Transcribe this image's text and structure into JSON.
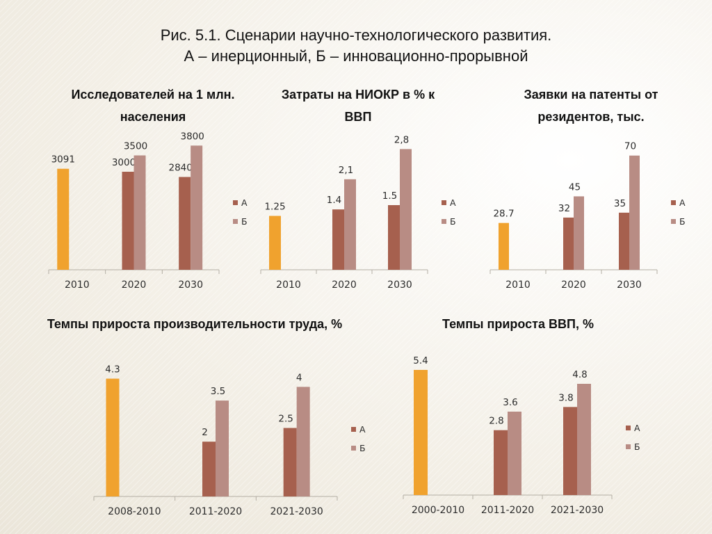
{
  "figure": {
    "title_line1": "Рис. 5.1. Сценарии научно-технологического развития.",
    "title_line2": "А – инерционный, Б – инновационно-прорывной"
  },
  "colors": {
    "base": "#f0a22e",
    "A": "#a6604e",
    "B": "#b88c84",
    "axis": "#b3aea4"
  },
  "chart_data": [
    {
      "type": "bar",
      "title_lines": [
        "Исследователей на 1 млн.",
        "населения"
      ],
      "categories": [
        "2010",
        "2020",
        "2030"
      ],
      "base": {
        "value": 3091,
        "label": "3091"
      },
      "series": [
        {
          "name": "А",
          "values": [
            null,
            3000,
            2840
          ],
          "labels": [
            "",
            "3000",
            "2840"
          ]
        },
        {
          "name": "Б",
          "values": [
            null,
            3500,
            3800
          ],
          "labels": [
            "",
            "3500",
            "3800"
          ]
        }
      ],
      "ylim": [
        0,
        4000
      ],
      "legend": "right"
    },
    {
      "type": "bar",
      "title_lines": [
        "Затраты на НИОКР в % к",
        "ВВП"
      ],
      "categories": [
        "2010",
        "2020",
        "2030"
      ],
      "base": {
        "value": 1.25,
        "label": "1.25"
      },
      "series": [
        {
          "name": "А",
          "values": [
            null,
            1.4,
            1.5
          ],
          "labels": [
            "",
            "1.4",
            "1.5"
          ]
        },
        {
          "name": "Б",
          "values": [
            null,
            2.1,
            2.8
          ],
          "labels": [
            "",
            "2,1",
            "2,8"
          ]
        }
      ],
      "ylim": [
        0,
        3.0
      ],
      "legend": "right"
    },
    {
      "type": "bar",
      "title_lines": [
        "Заявки на патенты от",
        "резидентов, тыс."
      ],
      "categories": [
        "2010",
        "2020",
        "2030"
      ],
      "base": {
        "value": 28.7,
        "label": "28.7"
      },
      "series": [
        {
          "name": "А",
          "values": [
            null,
            32,
            35
          ],
          "labels": [
            "",
            "32",
            "35"
          ]
        },
        {
          "name": "Б",
          "values": [
            null,
            45,
            70
          ],
          "labels": [
            "",
            "45",
            "70"
          ]
        }
      ],
      "ylim": [
        0,
        75
      ],
      "legend": "right"
    },
    {
      "type": "bar",
      "title_lines": [
        "Темпы прироста производительности труда, %"
      ],
      "categories": [
        "2008-2010",
        "2011-2020",
        "2021-2030"
      ],
      "base": {
        "value": 4.3,
        "label": "4.3"
      },
      "series": [
        {
          "name": "А",
          "values": [
            null,
            2,
            2.5
          ],
          "labels": [
            "",
            "2",
            "2.5"
          ]
        },
        {
          "name": "Б",
          "values": [
            null,
            3.5,
            4
          ],
          "labels": [
            "",
            "3.5",
            "4"
          ]
        }
      ],
      "ylim": [
        0,
        5
      ],
      "legend": "right"
    },
    {
      "type": "bar",
      "title_lines": [
        "Темпы прироста ВВП, %"
      ],
      "categories": [
        "2000-2010",
        "2011-2020",
        "2021-2030"
      ],
      "base": {
        "value": 5.4,
        "label": "5.4"
      },
      "series": [
        {
          "name": "А",
          "values": [
            null,
            2.8,
            3.8
          ],
          "labels": [
            "",
            "2.8",
            "3.8"
          ]
        },
        {
          "name": "Б",
          "values": [
            null,
            3.6,
            4.8
          ],
          "labels": [
            "",
            "3.6",
            "4.8"
          ]
        }
      ],
      "ylim": [
        0,
        6
      ],
      "legend": "right"
    }
  ]
}
